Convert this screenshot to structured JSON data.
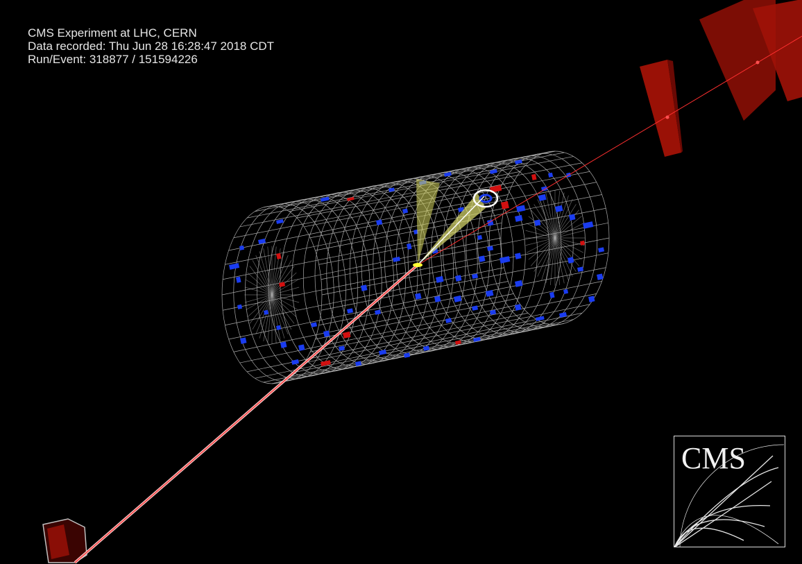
{
  "event_info": {
    "experiment": "CMS Experiment at LHC, CERN",
    "recorded": "Data recorded: Thu Jun 28 16:28:47 2018 CDT",
    "run_event": "Run/Event: 318877 / 151594226"
  },
  "logo": {
    "text": "CMS"
  },
  "colors": {
    "background": "#000000",
    "mesh": "#c8c8c8",
    "hit_blue": "#1a3cf0",
    "hit_red": "#d21010",
    "muon_chamber": "#a01208",
    "muon_track": "#ff4444",
    "jet_cone": "#d8d860",
    "vertex": "#ffff33"
  }
}
